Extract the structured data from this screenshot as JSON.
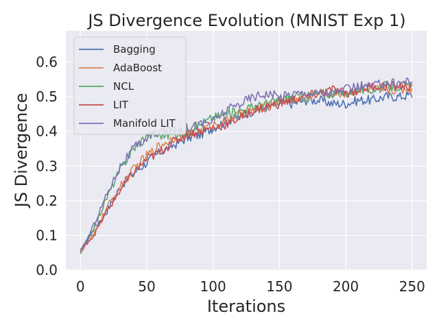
{
  "chart_data": {
    "type": "line",
    "title": "JS Divergence Evolution (MNIST Exp 1)",
    "xlabel": "Iterations",
    "ylabel": "JS Divergence",
    "xlim": [
      -11,
      261
    ],
    "ylim": [
      0.0,
      0.69
    ],
    "xticks": [
      0,
      50,
      100,
      150,
      200,
      250
    ],
    "xtick_labels": [
      "0",
      "50",
      "100",
      "150",
      "200",
      "250"
    ],
    "yticks": [
      0.0,
      0.1,
      0.2,
      0.3,
      0.4,
      0.5,
      0.6
    ],
    "ytick_labels": [
      "0.0",
      "0.1",
      "0.2",
      "0.3",
      "0.4",
      "0.5",
      "0.6"
    ],
    "grid": true,
    "legend_position": "top-left",
    "colors": {
      "background": "#eaeaf2",
      "grid": "#ffffff",
      "bagging": "#4c72b0",
      "adaboost": "#dd8452",
      "ncl": "#55a868",
      "lit": "#c44e52",
      "manifold_lit": "#8172b3"
    },
    "anchor_x": [
      0,
      10,
      20,
      30,
      40,
      50,
      60,
      70,
      80,
      90,
      100,
      110,
      120,
      130,
      140,
      150,
      160,
      170,
      180,
      190,
      200,
      210,
      220,
      230,
      240,
      250
    ],
    "series": [
      {
        "name": "Bagging",
        "color": "#4c72b0",
        "values": [
          0.05,
          0.12,
          0.17,
          0.24,
          0.28,
          0.31,
          0.34,
          0.36,
          0.38,
          0.39,
          0.41,
          0.43,
          0.44,
          0.46,
          0.47,
          0.48,
          0.48,
          0.49,
          0.49,
          0.48,
          0.48,
          0.49,
          0.49,
          0.5,
          0.5,
          0.505
        ]
      },
      {
        "name": "AdaBoost",
        "color": "#dd8452",
        "values": [
          0.05,
          0.1,
          0.18,
          0.24,
          0.29,
          0.33,
          0.36,
          0.38,
          0.39,
          0.4,
          0.42,
          0.43,
          0.45,
          0.46,
          0.47,
          0.49,
          0.49,
          0.5,
          0.51,
          0.51,
          0.51,
          0.52,
          0.52,
          0.52,
          0.52,
          0.525
        ]
      },
      {
        "name": "NCL",
        "color": "#55a868",
        "values": [
          0.05,
          0.12,
          0.21,
          0.29,
          0.35,
          0.39,
          0.39,
          0.39,
          0.4,
          0.42,
          0.44,
          0.45,
          0.46,
          0.47,
          0.48,
          0.49,
          0.5,
          0.5,
          0.51,
          0.51,
          0.51,
          0.52,
          0.52,
          0.53,
          0.53,
          0.53
        ]
      },
      {
        "name": "LIT",
        "color": "#c44e52",
        "values": [
          0.06,
          0.1,
          0.17,
          0.23,
          0.28,
          0.32,
          0.34,
          0.37,
          0.39,
          0.4,
          0.41,
          0.42,
          0.44,
          0.46,
          0.47,
          0.48,
          0.49,
          0.5,
          0.51,
          0.52,
          0.51,
          0.52,
          0.53,
          0.53,
          0.53,
          0.53
        ]
      },
      {
        "name": "Manifold LIT",
        "color": "#8172b3",
        "values": [
          0.05,
          0.13,
          0.22,
          0.3,
          0.35,
          0.38,
          0.4,
          0.41,
          0.41,
          0.42,
          0.43,
          0.46,
          0.48,
          0.5,
          0.51,
          0.5,
          0.51,
          0.51,
          0.51,
          0.51,
          0.52,
          0.53,
          0.53,
          0.54,
          0.54,
          0.55
        ]
      }
    ]
  }
}
